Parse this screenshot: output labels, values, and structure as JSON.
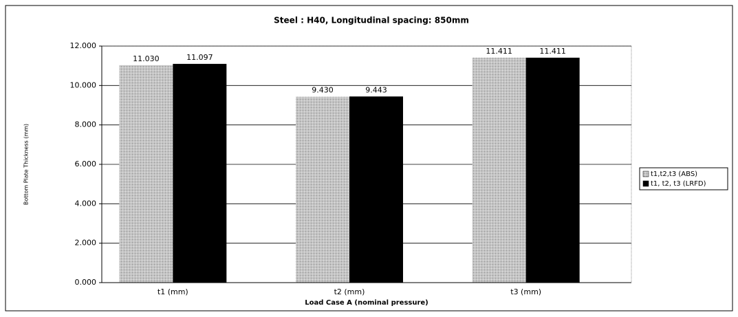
{
  "chart_data": {
    "type": "bar",
    "title": "Steel : H40, Longitudinal spacing: 850mm",
    "x_label": "Load Case A (nominal pressure)",
    "y_label": "Bottom Plate Thickness (mm)",
    "categories": [
      "t1 (mm)",
      "t2 (mm)",
      "t3 (mm)"
    ],
    "series": [
      {
        "name": "t1,t2,t3 (ABS)",
        "color": "#c4c4c4",
        "values": [
          11.03,
          9.43,
          11.411
        ],
        "value_labels": [
          "11.030",
          "9.430",
          "11.411"
        ]
      },
      {
        "name": "t1, t2, t3 (LRFD)",
        "color": "#000000",
        "values": [
          11.097,
          9.443,
          11.411
        ],
        "value_labels": [
          "11.097",
          "9.443",
          "11.411"
        ]
      }
    ],
    "ylim": [
      0,
      12
    ],
    "yticks": [
      {
        "value": 0,
        "label": "0.000"
      },
      {
        "value": 2,
        "label": "2.000"
      },
      {
        "value": 4,
        "label": "4.000"
      },
      {
        "value": 6,
        "label": "6.000"
      },
      {
        "value": 8,
        "label": "8.000"
      },
      {
        "value": 10,
        "label": "10.000"
      },
      {
        "value": 12,
        "label": "12.000"
      }
    ],
    "grid": true,
    "legend": "right"
  }
}
